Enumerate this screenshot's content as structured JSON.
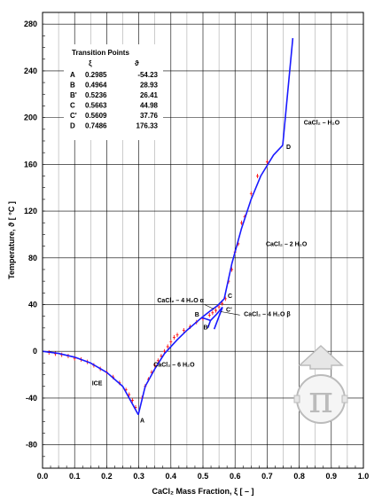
{
  "chart_data": {
    "type": "line",
    "xlabel": "CaCl₂ Mass Fraction, ξ [ – ]",
    "ylabel": "Temperature, ϑ [ °C ]",
    "xlim": [
      0.0,
      1.0
    ],
    "ylim": [
      -100,
      290
    ],
    "grid": true,
    "x_ticks": [
      0.0,
      0.1,
      0.2,
      0.3,
      0.4,
      0.5,
      0.6,
      0.7,
      0.8,
      0.9,
      1.0
    ],
    "x_tick_labels": [
      "0.0",
      "0.1",
      "0.2",
      "0.3",
      "0.4",
      "0.5",
      "0.6",
      "0.7",
      "0.8",
      "0.9",
      "1.0"
    ],
    "y_ticks": [
      -80,
      -40,
      0,
      40,
      80,
      120,
      160,
      200,
      240,
      280
    ],
    "y_tick_labels": [
      "-80",
      "-40",
      "0",
      "40",
      "80",
      "120",
      "160",
      "200",
      "240",
      "280"
    ],
    "line_color": "#1a1aff",
    "marker_color": "#ff0000",
    "series": [
      {
        "role": "curve",
        "points": [
          [
            0.0,
            0.0
          ],
          [
            0.05,
            -1.8
          ],
          [
            0.1,
            -5
          ],
          [
            0.15,
            -10
          ],
          [
            0.2,
            -18
          ],
          [
            0.25,
            -30
          ],
          [
            0.2985,
            -54.23
          ]
        ]
      },
      {
        "role": "curve",
        "points": [
          [
            0.2985,
            -54.23
          ],
          [
            0.32,
            -30
          ],
          [
            0.35,
            -15
          ],
          [
            0.38,
            -2
          ],
          [
            0.42,
            10
          ],
          [
            0.45,
            18
          ],
          [
            0.4964,
            28.93
          ]
        ]
      },
      {
        "role": "curve",
        "points": [
          [
            0.4964,
            28.93
          ],
          [
            0.52,
            34
          ],
          [
            0.545,
            39
          ],
          [
            0.5663,
            44.98
          ]
        ]
      },
      {
        "role": "curve",
        "points": [
          [
            0.4964,
            28.93
          ],
          [
            0.5236,
            26.41
          ],
          [
            0.54,
            31
          ],
          [
            0.5609,
            37.76
          ]
        ]
      },
      {
        "role": "curve",
        "points": [
          [
            0.5236,
            26.41
          ],
          [
            0.515,
            20
          ]
        ]
      },
      {
        "role": "curve",
        "points": [
          [
            0.5609,
            37.76
          ],
          [
            0.535,
            19
          ]
        ]
      },
      {
        "role": "curve",
        "points": [
          [
            0.5663,
            44.98
          ],
          [
            0.59,
            75
          ],
          [
            0.62,
            105
          ],
          [
            0.65,
            130
          ],
          [
            0.68,
            150
          ],
          [
            0.72,
            168
          ],
          [
            0.7486,
            176.33
          ]
        ]
      },
      {
        "role": "curve",
        "points": [
          [
            0.7486,
            176.33
          ],
          [
            0.78,
            268
          ]
        ]
      }
    ],
    "measured_points": [
      [
        0.02,
        -1
      ],
      [
        0.04,
        -2
      ],
      [
        0.06,
        -3
      ],
      [
        0.08,
        -4
      ],
      [
        0.1,
        -6
      ],
      [
        0.12,
        -7
      ],
      [
        0.14,
        -9
      ],
      [
        0.16,
        -12
      ],
      [
        0.18,
        -15
      ],
      [
        0.2,
        -18
      ],
      [
        0.22,
        -22
      ],
      [
        0.24,
        -27
      ],
      [
        0.26,
        -33
      ],
      [
        0.27,
        -37
      ],
      [
        0.28,
        -42
      ],
      [
        0.29,
        -48
      ],
      [
        0.31,
        -40
      ],
      [
        0.32,
        -30
      ],
      [
        0.33,
        -24
      ],
      [
        0.34,
        -18
      ],
      [
        0.35,
        -12
      ],
      [
        0.36,
        -8
      ],
      [
        0.37,
        -4
      ],
      [
        0.38,
        0
      ],
      [
        0.39,
        4
      ],
      [
        0.4,
        8
      ],
      [
        0.41,
        12
      ],
      [
        0.42,
        14
      ],
      [
        0.44,
        18
      ],
      [
        0.46,
        21
      ],
      [
        0.48,
        25
      ],
      [
        0.5,
        28
      ],
      [
        0.52,
        31
      ],
      [
        0.53,
        33
      ],
      [
        0.54,
        35
      ],
      [
        0.55,
        38
      ],
      [
        0.56,
        41
      ],
      [
        0.57,
        45
      ],
      [
        0.58,
        60
      ],
      [
        0.59,
        70
      ],
      [
        0.6,
        85
      ],
      [
        0.61,
        92
      ],
      [
        0.62,
        110
      ],
      [
        0.63,
        115
      ],
      [
        0.65,
        135
      ],
      [
        0.67,
        150
      ],
      [
        0.7,
        162
      ]
    ],
    "transition_points": {
      "title": "Transition Points",
      "header_xi": "ξ",
      "header_theta": "ϑ",
      "rows": [
        {
          "label": "A",
          "xi": "0.2985",
          "theta": "-54.23",
          "x": 0.2985,
          "y": -54.23
        },
        {
          "label": "B",
          "xi": "0.4964",
          "theta": "28.93",
          "x": 0.4964,
          "y": 28.93
        },
        {
          "label": "B'",
          "xi": "0.5236",
          "theta": "26.41",
          "x": 0.5236,
          "y": 26.41
        },
        {
          "label": "C",
          "xi": "0.5663",
          "theta": "44.98",
          "x": 0.5663,
          "y": 44.98
        },
        {
          "label": "C'",
          "xi": "0.5609",
          "theta": "37.76",
          "x": 0.5609,
          "y": 37.76
        },
        {
          "label": "D",
          "xi": "0.7486",
          "theta": "176.33",
          "x": 0.7486,
          "y": 176.33
        }
      ]
    },
    "region_labels": [
      {
        "text": "ICE",
        "x": 0.17,
        "y": -29
      },
      {
        "text": "CaCl₂ – 6 H₂O",
        "x": 0.41,
        "y": -13
      },
      {
        "text": "CaCl₂ – 4 H₂O  α",
        "x": 0.43,
        "y": 42
      },
      {
        "text": "CaCl₂ – 4 H₂O  β",
        "x": 0.7,
        "y": 30
      },
      {
        "text": "CaCl₂ – 2 H₂O",
        "x": 0.76,
        "y": 90
      },
      {
        "text": "CaCl₂ – H₂O",
        "x": 0.87,
        "y": 194
      }
    ]
  }
}
